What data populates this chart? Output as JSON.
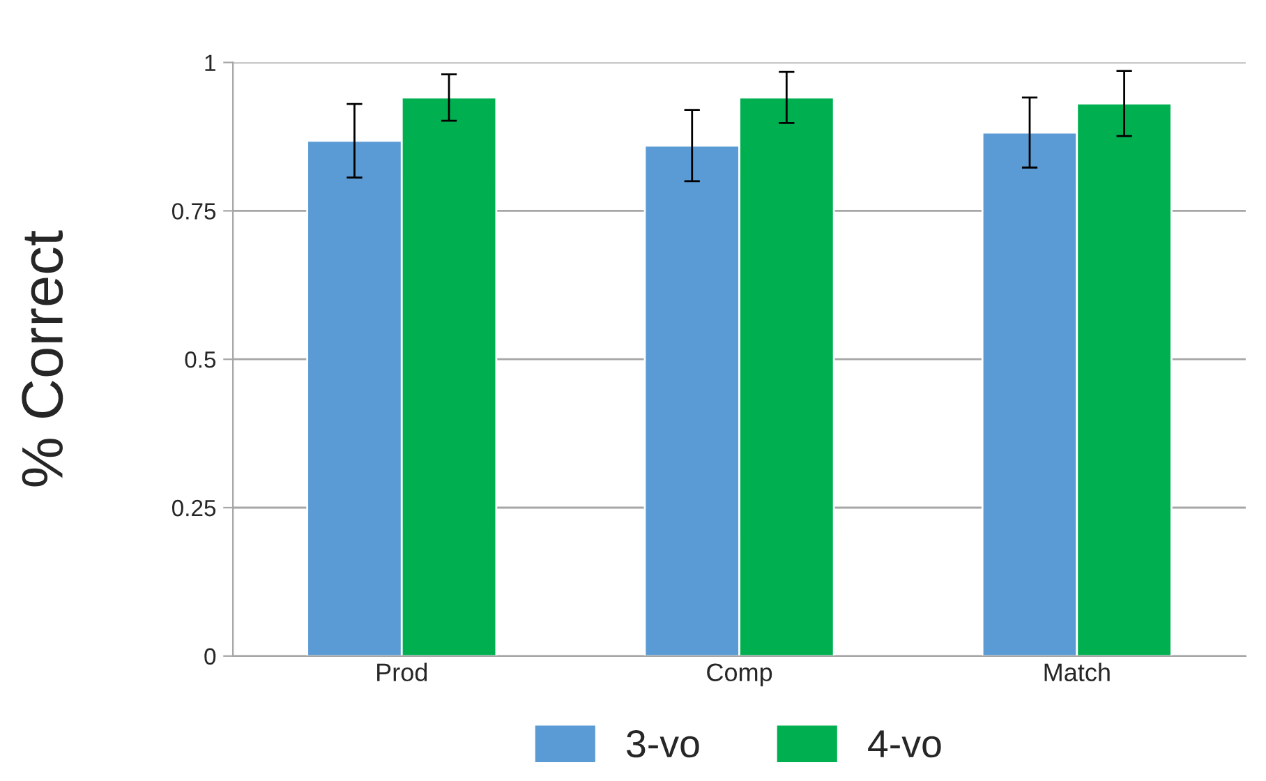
{
  "chart_data": {
    "type": "bar",
    "ylabel": "% Correct",
    "categories": [
      "Prod",
      "Comp",
      "Match"
    ],
    "series": [
      {
        "name": "3-vo",
        "color": "#5b9bd5",
        "values": [
          0.868,
          0.86,
          0.882
        ],
        "errors": [
          0.062,
          0.06,
          0.059
        ]
      },
      {
        "name": "4-vo",
        "color": "#00b050",
        "values": [
          0.941,
          0.941,
          0.931
        ],
        "errors": [
          0.039,
          0.043,
          0.055
        ]
      }
    ],
    "ylim": [
      0,
      1
    ],
    "yticks": [
      0,
      0.25,
      0.5,
      0.75,
      1
    ],
    "grid": "y",
    "legend": "bottom"
  }
}
